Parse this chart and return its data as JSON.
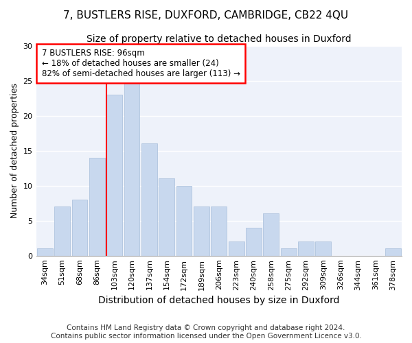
{
  "title1": "7, BUSTLERS RISE, DUXFORD, CAMBRIDGE, CB22 4QU",
  "title2": "Size of property relative to detached houses in Duxford",
  "xlabel": "Distribution of detached houses by size in Duxford",
  "ylabel": "Number of detached properties",
  "categories": [
    "34sqm",
    "51sqm",
    "68sqm",
    "86sqm",
    "103sqm",
    "120sqm",
    "137sqm",
    "154sqm",
    "172sqm",
    "189sqm",
    "206sqm",
    "223sqm",
    "240sqm",
    "258sqm",
    "275sqm",
    "292sqm",
    "309sqm",
    "326sqm",
    "344sqm",
    "361sqm",
    "378sqm"
  ],
  "values": [
    1,
    7,
    8,
    14,
    23,
    25,
    16,
    11,
    10,
    7,
    7,
    2,
    4,
    6,
    1,
    2,
    2,
    0,
    0,
    0,
    1
  ],
  "bar_color": "#c8d8ee",
  "bar_edge_color": "#b0c4de",
  "annotation_title": "7 BUSTLERS RISE: 96sqm",
  "annotation_line1": "← 18% of detached houses are smaller (24)",
  "annotation_line2": "82% of semi-detached houses are larger (113) →",
  "footnote1": "Contains HM Land Registry data © Crown copyright and database right 2024.",
  "footnote2": "Contains public sector information licensed under the Open Government Licence v3.0.",
  "ylim": [
    0,
    30
  ],
  "yticks": [
    0,
    5,
    10,
    15,
    20,
    25,
    30
  ],
  "bg_color": "#eef2fa",
  "grid_color": "#ffffff",
  "title1_fontsize": 11,
  "title2_fontsize": 10,
  "xlabel_fontsize": 10,
  "ylabel_fontsize": 9,
  "tick_fontsize": 8,
  "footnote_fontsize": 7.5,
  "red_line_index": 4
}
